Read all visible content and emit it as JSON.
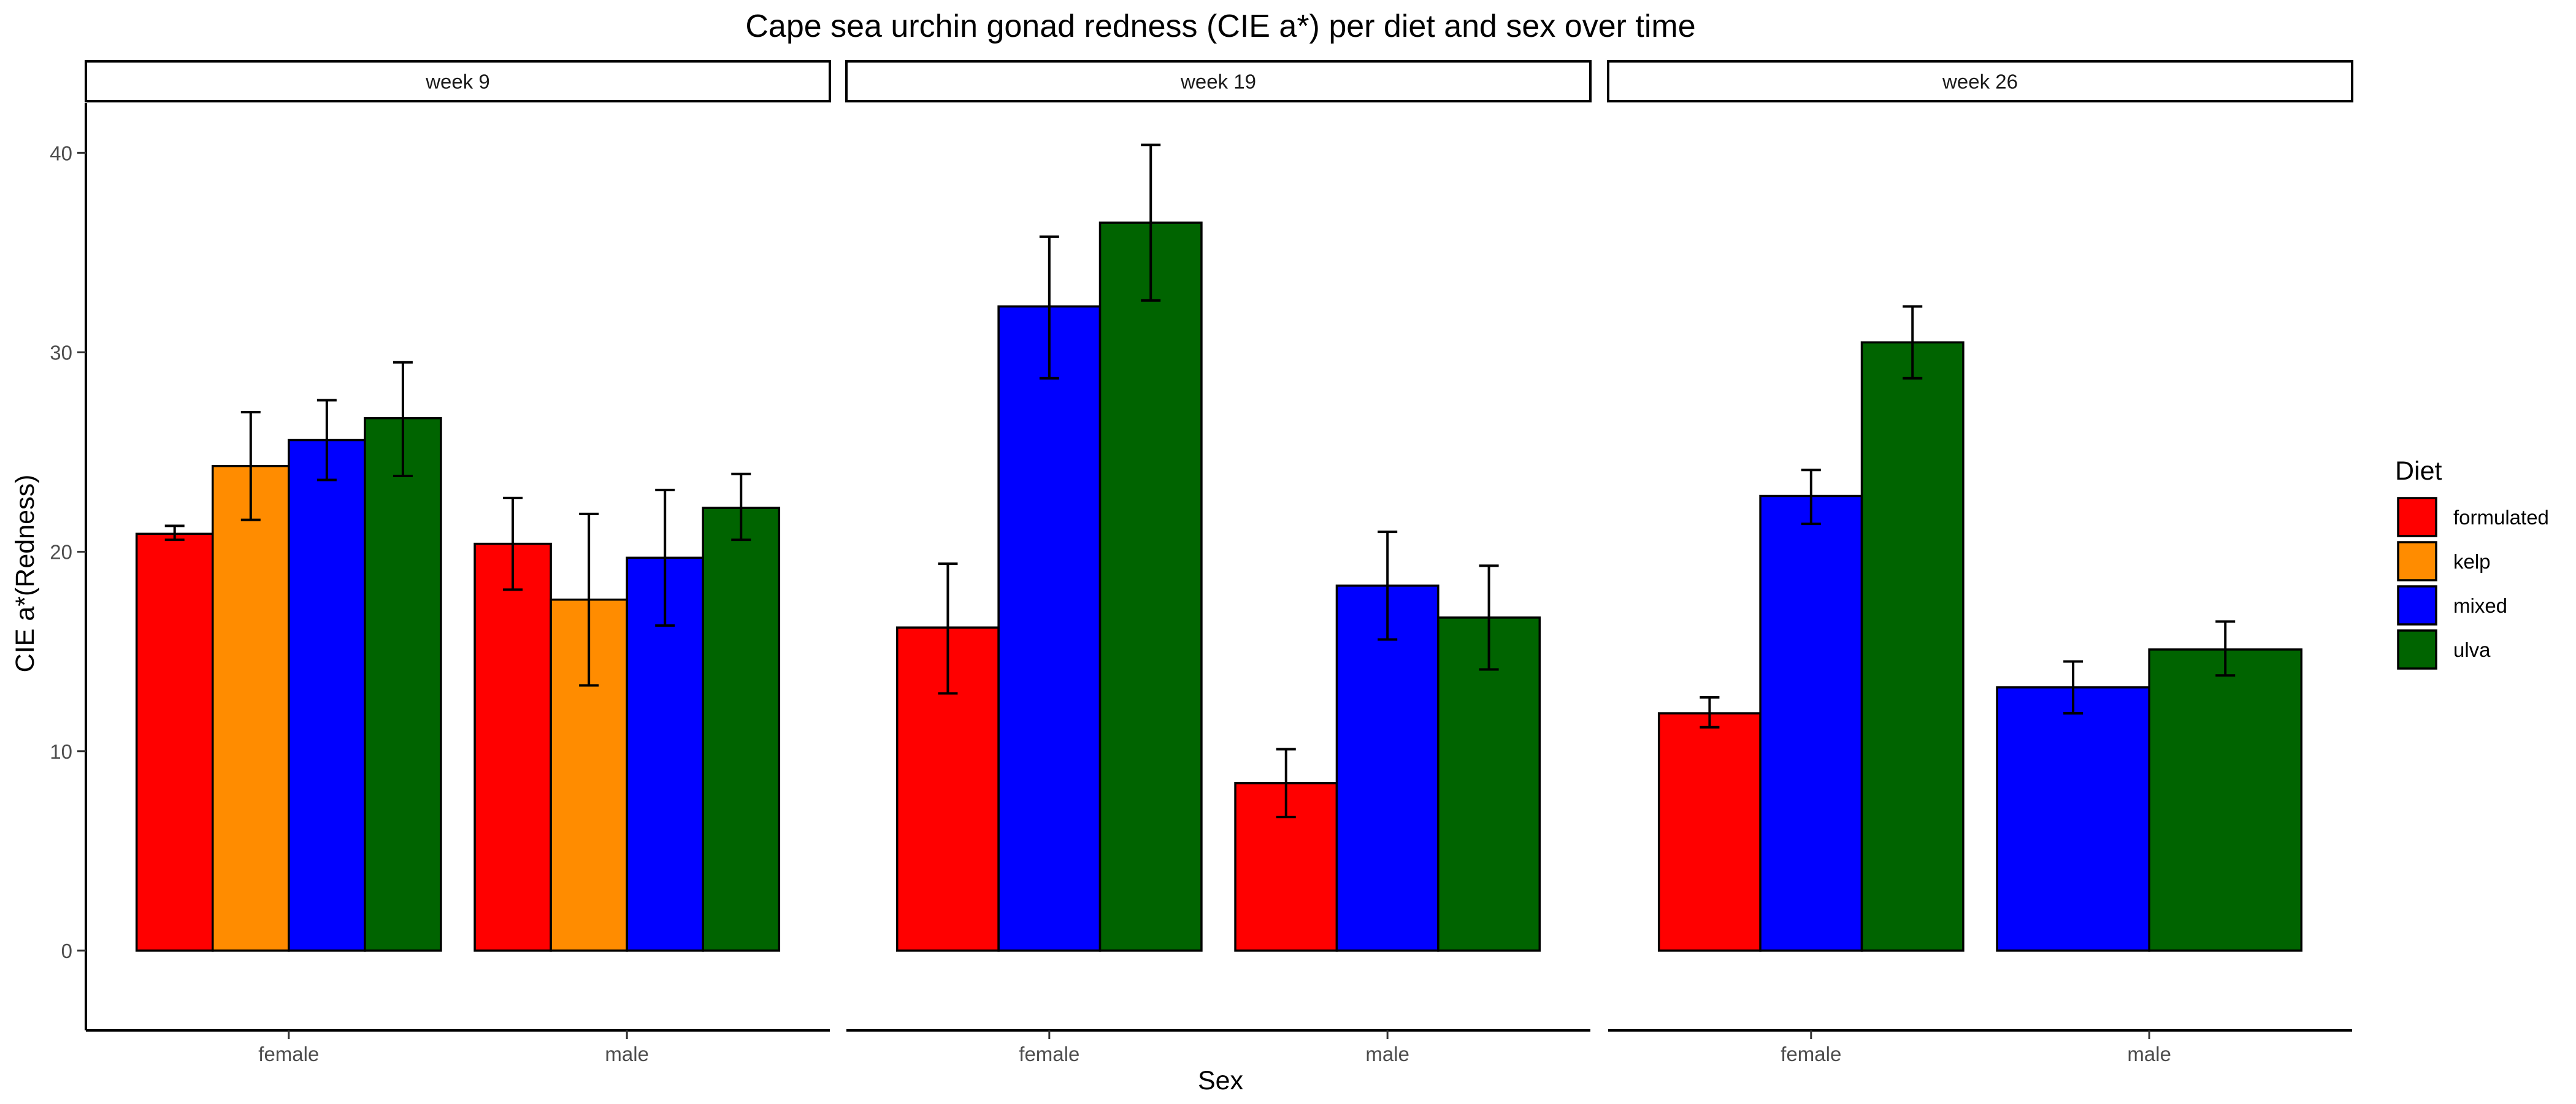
{
  "chart_data": {
    "type": "bar",
    "title": "Cape sea urchin gonad redness (CIE a*) per diet and sex over time",
    "xlabel": "Sex",
    "ylabel": "CIE a*(Redness)",
    "ylim": [
      -4,
      42.5
    ],
    "yticks": [
      0,
      10,
      20,
      30,
      40
    ],
    "grid": false,
    "legend": {
      "title": "Diet",
      "position": "right",
      "entries": [
        {
          "name": "formulated",
          "color": "#FF0000"
        },
        {
          "name": "kelp",
          "color": "#FF8C00"
        },
        {
          "name": "mixed",
          "color": "#0000FF"
        },
        {
          "name": "ulva",
          "color": "#006400"
        }
      ]
    },
    "panels": [
      {
        "strip": "week 9",
        "groups": [
          {
            "sex": "female",
            "bars": [
              {
                "diet": "formulated",
                "value": 20.9,
                "err_low": 20.6,
                "err_high": 21.3
              },
              {
                "diet": "kelp",
                "value": 24.3,
                "err_low": 21.6,
                "err_high": 27.0
              },
              {
                "diet": "mixed",
                "value": 25.6,
                "err_low": 23.6,
                "err_high": 27.6
              },
              {
                "diet": "ulva",
                "value": 26.7,
                "err_low": 23.8,
                "err_high": 29.5
              }
            ]
          },
          {
            "sex": "male",
            "bars": [
              {
                "diet": "formulated",
                "value": 20.4,
                "err_low": 18.1,
                "err_high": 22.7
              },
              {
                "diet": "kelp",
                "value": 17.6,
                "err_low": 13.3,
                "err_high": 21.9
              },
              {
                "diet": "mixed",
                "value": 19.7,
                "err_low": 16.3,
                "err_high": 23.1
              },
              {
                "diet": "ulva",
                "value": 22.2,
                "err_low": 20.6,
                "err_high": 23.9
              }
            ]
          }
        ]
      },
      {
        "strip": "week 19",
        "groups": [
          {
            "sex": "female",
            "bars": [
              {
                "diet": "formulated",
                "value": 16.2,
                "err_low": 12.9,
                "err_high": 19.4
              },
              {
                "diet": "mixed",
                "value": 32.3,
                "err_low": 28.7,
                "err_high": 35.8
              },
              {
                "diet": "ulva",
                "value": 36.5,
                "err_low": 32.6,
                "err_high": 40.4
              }
            ]
          },
          {
            "sex": "male",
            "bars": [
              {
                "diet": "formulated",
                "value": 8.4,
                "err_low": 6.7,
                "err_high": 10.1
              },
              {
                "diet": "mixed",
                "value": 18.3,
                "err_low": 15.6,
                "err_high": 21.0
              },
              {
                "diet": "ulva",
                "value": 16.7,
                "err_low": 14.1,
                "err_high": 19.3
              }
            ]
          }
        ]
      },
      {
        "strip": "week 26",
        "groups": [
          {
            "sex": "female",
            "bars": [
              {
                "diet": "formulated",
                "value": 11.9,
                "err_low": 11.2,
                "err_high": 12.7
              },
              {
                "diet": "mixed",
                "value": 22.8,
                "err_low": 21.4,
                "err_high": 24.1
              },
              {
                "diet": "ulva",
                "value": 30.5,
                "err_low": 28.7,
                "err_high": 32.3
              }
            ]
          },
          {
            "sex": "male",
            "bars": [
              {
                "diet": "mixed",
                "value": 13.2,
                "err_low": 11.9,
                "err_high": 14.5
              },
              {
                "diet": "ulva",
                "value": 15.1,
                "err_low": 13.8,
                "err_high": 16.5
              }
            ]
          }
        ]
      }
    ]
  }
}
